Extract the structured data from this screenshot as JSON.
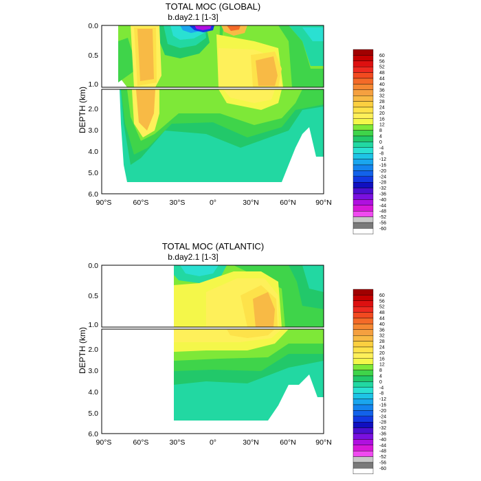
{
  "chart_data": [
    {
      "type": "heatmap",
      "title": "TOTAL MOC (GLOBAL)",
      "subtitle": "b.day2.1 [1-3]",
      "ylabel": "DEPTH (km)",
      "xlabel": "",
      "x_ticks": [
        "90°S",
        "60°S",
        "30°S",
        "0°",
        "30°N",
        "60°N",
        "90°N"
      ],
      "y_ticks_upper": [
        "0.0",
        "0.5",
        "1.0"
      ],
      "y_ticks_lower": [
        "2.0",
        "3.0",
        "4.0",
        "5.0",
        "6.0"
      ],
      "xlim": [
        -90,
        90
      ],
      "ylim": [
        6.0,
        0.0
      ],
      "y_break": 1.0,
      "lat_coverage": [
        -79,
        90
      ],
      "series_description": "overturning streamfunction (Sv)",
      "features": [
        {
          "lat": -52,
          "depth": 0.5,
          "value": 28
        },
        {
          "lat": -52,
          "depth": 2.0,
          "value": 24
        },
        {
          "lat": -32,
          "depth": 0.1,
          "value": -16
        },
        {
          "lat": -12,
          "depth": 0.02,
          "value": -48
        },
        {
          "lat": 12,
          "depth": 0.03,
          "value": 28
        },
        {
          "lat": 38,
          "depth": 0.4,
          "value": 28
        },
        {
          "lat": 20,
          "depth": 1.2,
          "value": 16
        },
        {
          "lat": 0,
          "depth": 4.0,
          "value": -4
        }
      ]
    },
    {
      "type": "heatmap",
      "title": "TOTAL MOC (ATLANTIC)",
      "subtitle": "b.day2.1 [1-3]",
      "ylabel": "DEPTH (km)",
      "xlabel": "",
      "x_ticks": [
        "90°S",
        "60°S",
        "30°S",
        "0°",
        "30°N",
        "60°N",
        "90°N"
      ],
      "y_ticks_upper": [
        "0.0",
        "0.5",
        "1.0"
      ],
      "y_ticks_lower": [
        "2.0",
        "3.0",
        "4.0",
        "5.0",
        "6.0"
      ],
      "xlim": [
        -90,
        90
      ],
      "ylim": [
        6.0,
        0.0
      ],
      "y_break": 1.0,
      "lat_coverage": [
        -34,
        90
      ],
      "series_description": "overturning streamfunction (Sv)",
      "features": [
        {
          "lat": -18,
          "depth": 0.05,
          "value": -8
        },
        {
          "lat": 36,
          "depth": 0.8,
          "value": 24
        },
        {
          "lat": 15,
          "depth": 1.4,
          "value": 16
        },
        {
          "lat": 10,
          "depth": 4.2,
          "value": -4
        }
      ]
    }
  ],
  "colorbar": {
    "labels": [
      "60",
      "56",
      "52",
      "48",
      "44",
      "40",
      "36",
      "32",
      "28",
      "24",
      "20",
      "16",
      "12",
      "8",
      "4",
      "0",
      "-4",
      "-8",
      "-12",
      "-16",
      "-20",
      "-24",
      "-28",
      "-32",
      "-36",
      "-40",
      "-44",
      "-48",
      "-52",
      "-56",
      "-60"
    ],
    "colors": [
      "#a00000",
      "#c40000",
      "#dd1010",
      "#ee2a20",
      "#f24a20",
      "#f46a28",
      "#f58832",
      "#f5a040",
      "#f8ba45",
      "#fbcf40",
      "#fde24a",
      "#fef05a",
      "#f4f74a",
      "#7ee838",
      "#3fd44a",
      "#22c86a",
      "#22d8a2",
      "#2ae0d2",
      "#1ec4e6",
      "#1aa6ee",
      "#1484ee",
      "#1262ea",
      "#1238e2",
      "#1010c0",
      "#4a10d0",
      "#7a10e0",
      "#b010e0",
      "#d818d8",
      "#f04af0",
      "#c8c8c8",
      "#7a7a7a",
      "#ffffff"
    ]
  }
}
